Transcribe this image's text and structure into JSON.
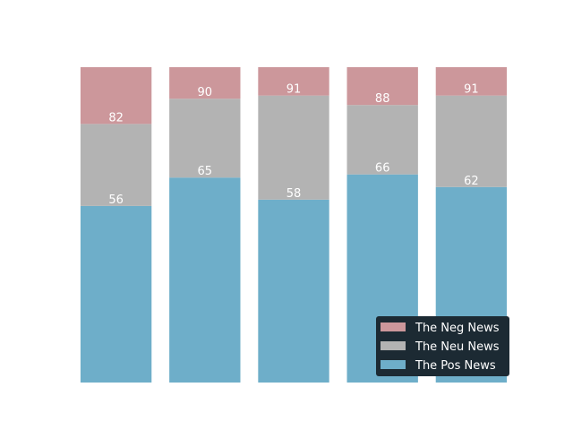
{
  "chart_data": {
    "type": "bar",
    "stacked": true,
    "categories": [
      "",
      "",
      "",
      "",
      ""
    ],
    "series": [
      {
        "name": "The Pos News",
        "values": [
          56,
          65,
          58,
          66,
          62
        ],
        "color": "#6eaec9",
        "label_values": [
          "56",
          "65",
          "58",
          "66",
          "62"
        ]
      },
      {
        "name": "The Neu News",
        "values": [
          26,
          25,
          33,
          22,
          29
        ],
        "color": "#b3b3b3",
        "label_values": [
          "82",
          "90",
          "91",
          "88",
          "91"
        ]
      },
      {
        "name": "The Neg News",
        "values": [
          18,
          10,
          9,
          12,
          9
        ],
        "color": "#cc979b",
        "label_values": [
          null,
          null,
          null,
          null,
          null
        ]
      }
    ],
    "ylim": [
      0,
      100
    ],
    "title": "",
    "xlabel": "",
    "ylabel": "",
    "axes_visible": false,
    "grid": false,
    "legend": {
      "position": "lower-right",
      "order": [
        "The Neg News",
        "The Neu News",
        "The Pos News"
      ],
      "background": "#1c2a33"
    }
  }
}
